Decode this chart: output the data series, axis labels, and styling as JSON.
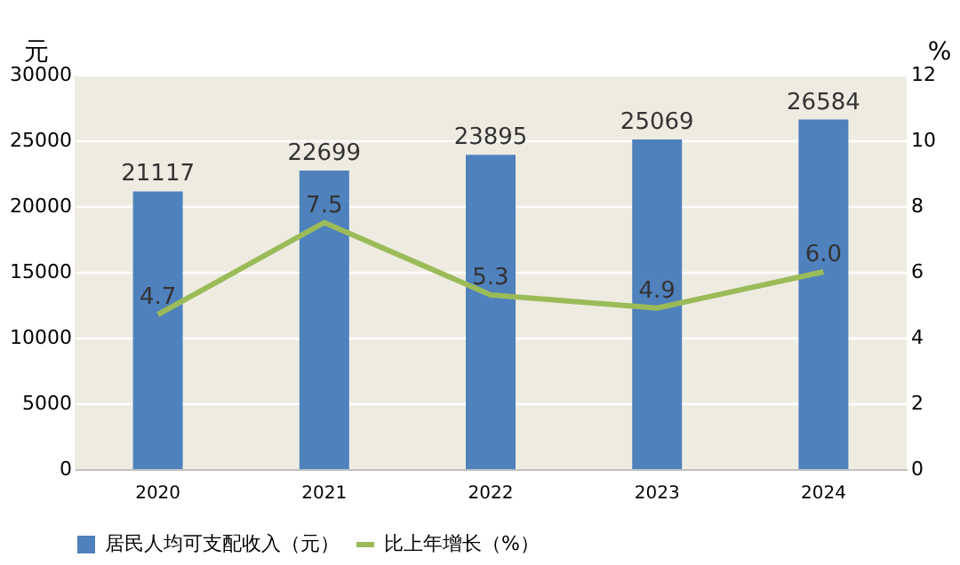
{
  "chart_data": {
    "type": "bar",
    "categories": [
      "2020",
      "2021",
      "2022",
      "2023",
      "2024"
    ],
    "series": [
      {
        "name": "居民人均可支配收入（元）",
        "color": "#4f81bd",
        "values": [
          21117,
          22699,
          23895,
          25069,
          26584
        ]
      },
      {
        "name": "比上年增长（%）",
        "type": "line",
        "axis": "y2",
        "color": "#9bbb59",
        "values": [
          4.7,
          7.5,
          5.3,
          4.9,
          6.0
        ],
        "value_labels": [
          "4.7",
          "7.5",
          "5.3",
          "4.9",
          "6.0"
        ]
      }
    ],
    "ylabel": "元",
    "y2label": "%",
    "ylim": [
      0,
      30000
    ],
    "yticks": [
      0,
      5000,
      10000,
      15000,
      20000,
      25000,
      30000
    ],
    "y2lim": [
      0,
      12
    ],
    "y2ticks": [
      0,
      2,
      4,
      6,
      8,
      10,
      12
    ],
    "grid": "y",
    "legend": "bottom",
    "data_labels": true,
    "line_style": "solid"
  }
}
